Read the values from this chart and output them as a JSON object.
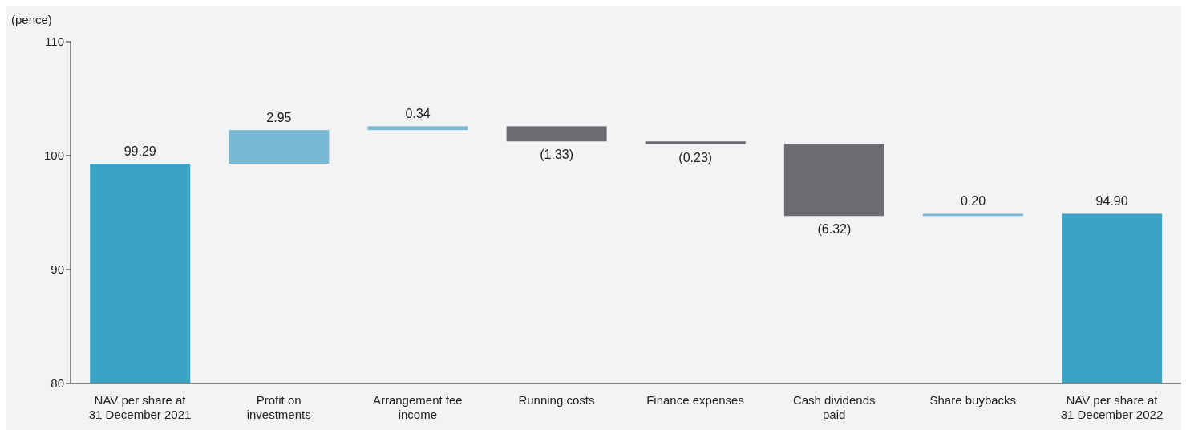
{
  "chart_data": {
    "type": "bar",
    "ylabel": "(pence)",
    "categories": [
      "NAV per share at 31 December 2021",
      "Profit on investments",
      "Arrangement fee income",
      "Running costs",
      "Finance expenses",
      "Cash dividends paid",
      "Share buybacks",
      "NAV per share at 31 December 2022"
    ],
    "values": [
      99.29,
      2.95,
      0.34,
      -1.33,
      -0.23,
      -6.32,
      0.2,
      94.9
    ],
    "base": [
      null,
      99.29,
      102.24,
      102.58,
      101.25,
      101.02,
      94.7,
      null
    ],
    "colors": [
      "#3ba3c3",
      "#7ab9d3",
      "#7ab9d3",
      "#6c6d70",
      "#6c6d70",
      "#6c6d70",
      "#7ab9d3",
      "#3ba3c3"
    ],
    "value_labels": [
      "99.29",
      "2.95",
      "0.34",
      "(1.33)",
      "(0.23)",
      "(6.32)",
      "0.20",
      "94.90"
    ],
    "ylim": [
      80,
      110
    ],
    "yticks": [
      80,
      90,
      100,
      110
    ]
  }
}
